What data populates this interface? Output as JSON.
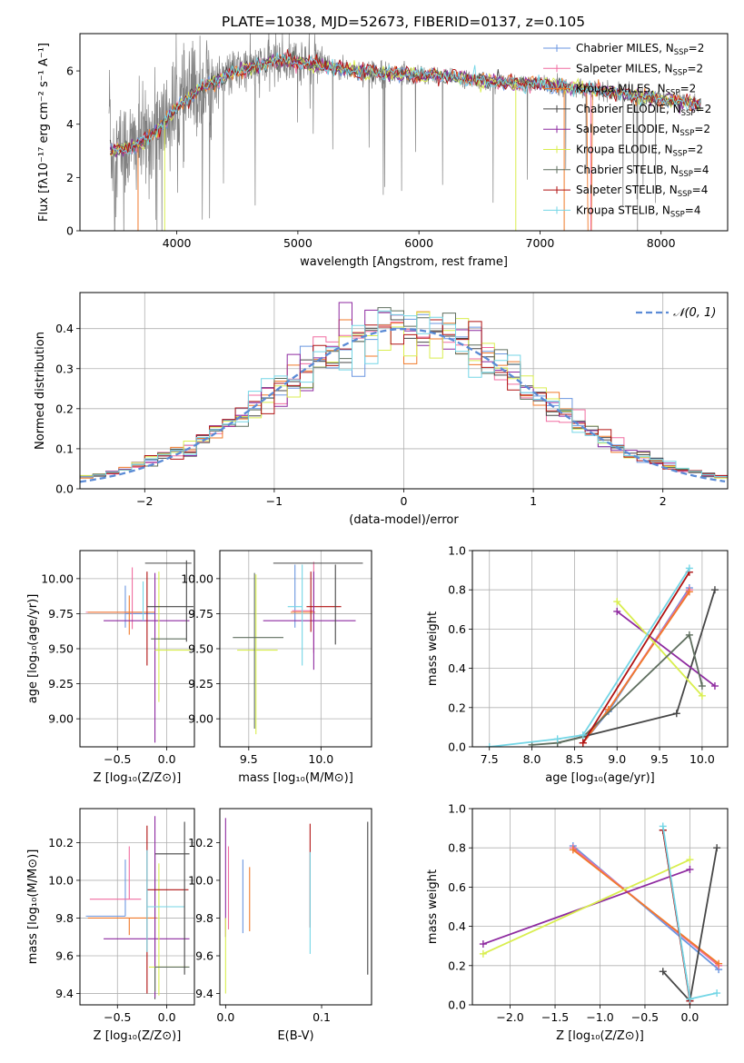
{
  "colors": {
    "Chabrier MILES": "#6a96e0",
    "Salpeter MILES": "#f06da0",
    "Kroupa MILES": "#f07a2a",
    "Chabrier ELODIE": "#474747",
    "Salpeter ELODIE": "#8e2aa0",
    "Kroupa ELODIE": "#d9ee4f",
    "Chabrier STELIB": "#5f6f5f",
    "Salpeter STELIB": "#b01212",
    "Kroupa STELIB": "#74d6e6",
    "data": "#808080",
    "normal": "#5b8bd6",
    "grid": "#b0b0b0"
  },
  "chart_data": [
    {
      "id": "spectrum",
      "type": "line",
      "title": "PLATE=1038, MJD=52673, FIBERID=0137, z=0.105",
      "xlabel": "wavelength [Angstrom, rest frame]",
      "ylabel": "Flux [fλ10⁻¹⁷ erg cm⁻² s⁻¹ A⁻¹]",
      "xlim": [
        3200,
        8550
      ],
      "ylim": [
        0,
        7.4
      ],
      "xticks": [
        4000,
        5000,
        6000,
        7000,
        8000
      ],
      "yticks": [
        0,
        2,
        4,
        6
      ],
      "grid": false,
      "legend_position": "top-right",
      "legend": [
        {
          "imf": "Chabrier",
          "lib": "MILES",
          "n": "2"
        },
        {
          "imf": "Salpeter",
          "lib": "MILES",
          "n": "2"
        },
        {
          "imf": "Kroupa",
          "lib": "MILES",
          "n": "2"
        },
        {
          "imf": "Chabrier",
          "lib": "ELODIE",
          "n": "2"
        },
        {
          "imf": "Salpeter",
          "lib": "ELODIE",
          "n": "2"
        },
        {
          "imf": "Kroupa",
          "lib": "ELODIE",
          "n": "2"
        },
        {
          "imf": "Chabrier",
          "lib": "STELIB",
          "n": "4"
        },
        {
          "imf": "Salpeter",
          "lib": "STELIB",
          "n": "4"
        },
        {
          "imf": "Kroupa",
          "lib": "STELIB",
          "n": "4"
        }
      ],
      "model_continuum": {
        "x": [
          3450,
          3600,
          3700,
          3800,
          3900,
          4000,
          4100,
          4200,
          4300,
          4500,
          4700,
          4800,
          5000,
          5200,
          5400,
          5600,
          5800,
          6000,
          6200,
          6400,
          6600,
          6800,
          7000,
          7200,
          7400,
          7600,
          7800,
          8000,
          8200,
          8320
        ],
        "y": [
          3.0,
          3.1,
          3.3,
          3.6,
          4.1,
          4.6,
          5.0,
          5.4,
          5.6,
          6.0,
          6.2,
          6.4,
          6.35,
          6.2,
          6.05,
          5.95,
          5.9,
          5.85,
          5.8,
          5.7,
          5.6,
          5.55,
          5.5,
          5.4,
          5.3,
          5.2,
          5.05,
          4.95,
          4.8,
          4.7
        ]
      }
    },
    {
      "id": "residuals",
      "type": "histogram",
      "xlabel": "(data-model)/error",
      "ylabel": "Normed distribution",
      "xlim": [
        -2.5,
        2.5
      ],
      "ylim": [
        0,
        0.49
      ],
      "xticks": [
        -2,
        -1,
        0,
        1,
        2
      ],
      "yticks": [
        0.0,
        0.1,
        0.2,
        0.3,
        0.4
      ],
      "grid": true,
      "legend_position": "top-right",
      "legend_label": "𝒩(0, 1)",
      "bin_width": 0.1,
      "bins_start": -2.5,
      "reference_curve": "normal(0,1)"
    },
    {
      "id": "age-Z",
      "type": "errorbar",
      "xlabel": "Z [log₁₀(Z/Z⊙)]",
      "ylabel": "age  [log₁₀(age/yr)]",
      "xlim": [
        -0.88,
        0.28
      ],
      "ylim": [
        8.8,
        10.2
      ],
      "xticks": [
        -0.5,
        0.0
      ],
      "yticks": [
        9.0,
        9.25,
        9.5,
        9.75,
        10.0
      ],
      "grid": true,
      "points": [
        {
          "model": "Chabrier MILES",
          "x": -0.42,
          "xerr": [
            0.0,
            0.3
          ],
          "y": 9.75,
          "yerr": [
            0.1,
            0.2
          ]
        },
        {
          "model": "Salpeter MILES",
          "x": -0.35,
          "xerr": [
            0.47,
            0.1
          ],
          "y": 9.76,
          "yerr": [
            0.12,
            0.32
          ]
        },
        {
          "model": "Kroupa MILES",
          "x": -0.38,
          "xerr": [
            0.42,
            0.26
          ],
          "y": 9.76,
          "yerr": [
            0.16,
            0.12
          ]
        },
        {
          "model": "Chabrier ELODIE",
          "x": -0.22,
          "xerr": [
            0.0,
            0.47
          ],
          "y": 10.11,
          "yerr": [
            0.0,
            0.0
          ]
        },
        {
          "model": "Salpeter ELODIE",
          "x": -0.12,
          "xerr": [
            0.52,
            0.35
          ],
          "y": 9.7,
          "yerr": [
            0.87,
            0.34
          ]
        },
        {
          "model": "Kroupa ELODIE",
          "x": -0.08,
          "xerr": [
            0.04,
            0.32
          ],
          "y": 9.49,
          "yerr": [
            0.37,
            0.56
          ]
        },
        {
          "model": "Chabrier STELIB",
          "x": -0.16,
          "xerr": [
            0.0,
            0.36
          ],
          "y": 9.57,
          "yerr": [
            0.0,
            0.0
          ]
        },
        {
          "model": "Salpeter STELIB",
          "x": -0.2,
          "xerr": [
            0.0,
            0.0
          ],
          "y": 10.05,
          "yerr": [
            0.67,
            0.0
          ]
        },
        {
          "model": "Kroupa STELIB",
          "x": -0.24,
          "xerr": [
            0.0,
            0.0
          ],
          "y": 9.98,
          "yerr": [
            0.28,
            0.0
          ]
        }
      ],
      "extra_h": [
        {
          "model": "Chabrier ELODIE",
          "x0": -0.2,
          "x1": 0.27,
          "y": 9.8
        },
        {
          "model": "Chabrier ELODIE",
          "x0": 0.2,
          "x1": 0.2,
          "y0": 9.55,
          "y1": 10.13
        }
      ]
    },
    {
      "id": "age-mass",
      "type": "errorbar",
      "xlabel": "mass [log₁₀(M/M⊙)]",
      "ylabel": "",
      "xlim": [
        9.3,
        10.35
      ],
      "ylim": [
        8.8,
        10.2
      ],
      "xticks": [
        9.5,
        10.0
      ],
      "yticks": [
        9.0,
        9.25,
        9.5,
        9.75,
        10.0
      ],
      "grid": true,
      "points": [
        {
          "model": "Chabrier MILES",
          "x": 9.82,
          "xerr": [
            0.0,
            0.0
          ],
          "y": 9.9,
          "yerr": [
            0.25,
            0.2
          ]
        },
        {
          "model": "Salpeter MILES",
          "x": 9.95,
          "xerr": [
            0.15,
            0.0
          ],
          "y": 9.77,
          "yerr": [
            0.3,
            0.35
          ]
        },
        {
          "model": "Kroupa MILES",
          "x": 9.9,
          "xerr": [
            0.11,
            0.06
          ],
          "y": 9.76,
          "yerr": [
            0.0,
            0.0
          ]
        },
        {
          "model": "Chabrier ELODIE",
          "x": 9.98,
          "xerr": [
            0.31,
            0.31
          ],
          "y": 10.11,
          "yerr": [
            0.0,
            0.0
          ]
        },
        {
          "model": "Salpeter ELODIE",
          "x": 9.9,
          "xerr": [
            0.3,
            0.34
          ],
          "y": 9.7,
          "yerr": [
            0.0,
            0.0
          ]
        },
        {
          "model": "Kroupa ELODIE",
          "x": 9.55,
          "xerr": [
            0.13,
            0.15
          ],
          "y": 9.49,
          "yerr": [
            0.6,
            0.54
          ]
        },
        {
          "model": "Chabrier STELIB",
          "x": 9.54,
          "xerr": [
            0.15,
            0.2
          ],
          "y": 9.58,
          "yerr": [
            0.65,
            0.46
          ]
        },
        {
          "model": "Salpeter STELIB",
          "x": 9.9,
          "xerr": [
            0.0,
            0.24
          ],
          "y": 9.8,
          "yerr": [
            0.0,
            0.0
          ]
        },
        {
          "model": "Kroupa STELIB",
          "x": 9.87,
          "xerr": [
            0.1,
            0.0
          ],
          "y": 9.8,
          "yerr": [
            0.42,
            0.3
          ]
        }
      ],
      "extra_v": [
        {
          "model": "Chabrier ELODIE",
          "x": 10.1,
          "y0": 9.53,
          "y1": 10.1
        },
        {
          "model": "Salpeter STELIB",
          "x": 9.93,
          "y0": 9.62,
          "y1": 10.05
        },
        {
          "model": "Salpeter ELODIE",
          "x": 9.95,
          "y0": 9.35,
          "y1": 10.05
        }
      ]
    },
    {
      "id": "weight-age",
      "type": "line",
      "xlabel": "age  [log₁₀(age/yr)]",
      "ylabel": "mass weight",
      "xlim": [
        7.3,
        10.3
      ],
      "ylim": [
        0.0,
        1.0
      ],
      "xticks": [
        7.5,
        8.0,
        8.5,
        9.0,
        9.5,
        10.0
      ],
      "yticks": [
        0.0,
        0.2,
        0.4,
        0.6,
        0.8,
        1.0
      ],
      "grid": true,
      "series": [
        {
          "model": "Chabrier MILES",
          "x": [
            8.6,
            8.9,
            9.85
          ],
          "y": [
            0.02,
            0.18,
            0.81
          ]
        },
        {
          "model": "Salpeter MILES",
          "x": [
            8.6,
            8.9,
            9.85
          ],
          "y": [
            0.02,
            0.19,
            0.8
          ]
        },
        {
          "model": "Kroupa MILES",
          "x": [
            8.6,
            8.9,
            9.85
          ],
          "y": [
            0.02,
            0.19,
            0.79
          ]
        },
        {
          "model": "Chabrier ELODIE",
          "x": [
            8.3,
            9.7,
            10.15
          ],
          "y": [
            0.02,
            0.17,
            0.8
          ]
        },
        {
          "model": "Salpeter ELODIE",
          "x": [
            9.0,
            10.15
          ],
          "y": [
            0.69,
            0.31
          ]
        },
        {
          "model": "Kroupa ELODIE",
          "x": [
            9.0,
            10.0
          ],
          "y": [
            0.74,
            0.26
          ]
        },
        {
          "model": "Chabrier STELIB",
          "x": [
            8.0,
            8.3,
            8.6,
            9.85,
            10.0
          ],
          "y": [
            0.01,
            0.02,
            0.05,
            0.57,
            0.31
          ]
        },
        {
          "model": "Salpeter STELIB",
          "x": [
            8.6,
            9.85
          ],
          "y": [
            0.02,
            0.89
          ]
        },
        {
          "model": "Kroupa STELIB",
          "x": [
            7.5,
            8.3,
            8.6,
            9.85
          ],
          "y": [
            0.0,
            0.04,
            0.06,
            0.91
          ]
        }
      ]
    },
    {
      "id": "mass-Z",
      "type": "errorbar",
      "xlabel": "Z [log₁₀(Z/Z⊙)]",
      "ylabel": "mass [log₁₀(M/M⊙)]",
      "xlim": [
        -0.88,
        0.28
      ],
      "ylim": [
        9.34,
        10.38
      ],
      "xticks": [
        -0.5,
        0.0
      ],
      "yticks": [
        9.4,
        9.6,
        9.8,
        10.0,
        10.2
      ],
      "grid": true,
      "points": [
        {
          "model": "Chabrier MILES",
          "x": -0.42,
          "xerr": [
            0.4,
            0.0
          ],
          "y": 9.81,
          "yerr": [
            0.0,
            0.3
          ]
        },
        {
          "model": "Salpeter MILES",
          "x": -0.38,
          "xerr": [
            0.4,
            0.12
          ],
          "y": 9.9,
          "yerr": [
            0.0,
            0.28
          ]
        },
        {
          "model": "Kroupa MILES",
          "x": -0.38,
          "xerr": [
            0.42,
            0.28
          ],
          "y": 9.8,
          "yerr": [
            0.09,
            0.0
          ]
        },
        {
          "model": "Chabrier ELODIE",
          "x": -0.12,
          "xerr": [
            0.0,
            0.35
          ],
          "y": 10.14,
          "yerr": [
            0.77,
            0.0
          ]
        },
        {
          "model": "Salpeter ELODIE",
          "x": -0.12,
          "xerr": [
            0.52,
            0.35
          ],
          "y": 9.69,
          "yerr": [
            0.31,
            0.65
          ]
        },
        {
          "model": "Kroupa ELODIE",
          "x": -0.08,
          "xerr": [
            0.1,
            0.3
          ],
          "y": 9.54,
          "yerr": [
            0.15,
            0.55
          ]
        },
        {
          "model": "Chabrier STELIB",
          "x": -0.12,
          "xerr": [
            0.0,
            0.35
          ],
          "y": 9.54,
          "yerr": [
            0.13,
            0.0
          ]
        },
        {
          "model": "Salpeter STELIB",
          "x": -0.2,
          "xerr": [
            0.0,
            0.42
          ],
          "y": 9.95,
          "yerr": [
            0.55,
            0.34
          ]
        },
        {
          "model": "Kroupa STELIB",
          "x": -0.2,
          "xerr": [
            0.0,
            0.38
          ],
          "y": 9.86,
          "yerr": [
            0.24,
            0.3
          ]
        }
      ],
      "extra_v": [
        {
          "model": "Chabrier ELODIE",
          "x": 0.18,
          "y0": 9.5,
          "y1": 10.31
        }
      ]
    },
    {
      "id": "mass-EBV",
      "type": "errorbar",
      "xlabel": "E(B-V)",
      "ylabel": "",
      "xlim": [
        -0.006,
        0.152
      ],
      "ylim": [
        9.34,
        10.38
      ],
      "xticks": [
        0.0,
        0.1
      ],
      "yticks": [
        9.4,
        9.6,
        9.8,
        10.0,
        10.2
      ],
      "grid": false,
      "points": [
        {
          "model": "Chabrier MILES",
          "x": 0.018,
          "xerr": [
            0,
            0
          ],
          "y": 9.8,
          "yerr": [
            0.08,
            0.31
          ]
        },
        {
          "model": "Salpeter MILES",
          "x": 0.003,
          "xerr": [
            0,
            0
          ],
          "y": 10.0,
          "yerr": [
            0.26,
            0.18
          ]
        },
        {
          "model": "Kroupa MILES",
          "x": 0.025,
          "xerr": [
            0,
            0
          ],
          "y": 9.8,
          "yerr": [
            0.07,
            0.27
          ]
        },
        {
          "model": "Chabrier ELODIE",
          "x": 0.148,
          "xerr": [
            0,
            0
          ],
          "y": 9.8,
          "yerr": [
            0.3,
            0.51
          ]
        },
        {
          "model": "Salpeter ELODIE",
          "x": 0.0,
          "xerr": [
            0,
            0
          ],
          "y": 9.7,
          "yerr": [
            0.0,
            0.63
          ]
        },
        {
          "model": "Kroupa ELODIE",
          "x": 0.0,
          "xerr": [
            0,
            0
          ],
          "y": 9.5,
          "yerr": [
            0.1,
            0.3
          ]
        },
        {
          "model": "Chabrier STELIB",
          "x": 0.0,
          "xerr": [
            0,
            0
          ],
          "y": 9.6,
          "yerr": [
            0.0,
            0.0
          ]
        },
        {
          "model": "Salpeter STELIB",
          "x": 0.088,
          "xerr": [
            0,
            0
          ],
          "y": 9.95,
          "yerr": [
            0.2,
            0.35
          ]
        },
        {
          "model": "Kroupa STELIB",
          "x": 0.088,
          "xerr": [
            0,
            0
          ],
          "y": 9.85,
          "yerr": [
            0.24,
            0.3
          ]
        }
      ]
    },
    {
      "id": "weight-Z",
      "type": "line",
      "xlabel": "Z [log₁₀(Z/Z⊙)]",
      "ylabel": "mass weight",
      "xlim": [
        -2.42,
        0.42
      ],
      "ylim": [
        0.0,
        1.0
      ],
      "xticks": [
        -2.0,
        -1.5,
        -1.0,
        -0.5,
        0.0
      ],
      "yticks": [
        0.0,
        0.2,
        0.4,
        0.6,
        0.8,
        1.0
      ],
      "grid": true,
      "series": [
        {
          "model": "Chabrier MILES",
          "x": [
            -1.3,
            0.32
          ],
          "y": [
            0.81,
            0.18
          ]
        },
        {
          "model": "Salpeter MILES",
          "x": [
            -1.3,
            0.32
          ],
          "y": [
            0.8,
            0.2
          ]
        },
        {
          "model": "Kroupa MILES",
          "x": [
            -1.3,
            0.32
          ],
          "y": [
            0.79,
            0.21
          ]
        },
        {
          "model": "Chabrier ELODIE",
          "x": [
            -0.3,
            0.0,
            0.3
          ],
          "y": [
            0.17,
            0.02,
            0.8
          ]
        },
        {
          "model": "Salpeter ELODIE",
          "x": [
            -2.3,
            0.0
          ],
          "y": [
            0.31,
            0.69
          ]
        },
        {
          "model": "Kroupa ELODIE",
          "x": [
            -2.3,
            0.0
          ],
          "y": [
            0.26,
            0.74
          ]
        },
        {
          "model": "Chabrier STELIB",
          "x": [
            -0.3,
            0.0
          ],
          "y": [
            0.89,
            0.03
          ]
        },
        {
          "model": "Salpeter STELIB",
          "x": [
            -0.3,
            0.0
          ],
          "y": [
            0.89,
            0.02
          ]
        },
        {
          "model": "Kroupa STELIB",
          "x": [
            -0.3,
            0.0,
            0.3
          ],
          "y": [
            0.91,
            0.03,
            0.06
          ]
        }
      ]
    }
  ]
}
